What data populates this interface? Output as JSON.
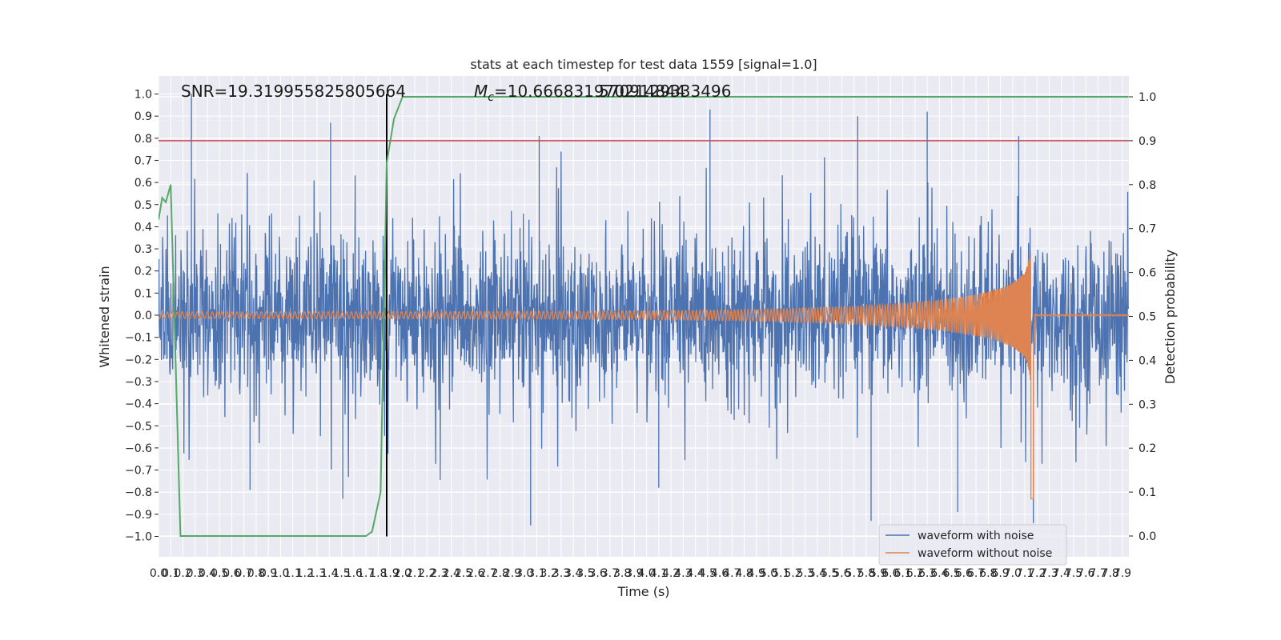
{
  "chart_data": {
    "type": "line",
    "title": "stats at each timestep for test data 1559 [signal=1.0]",
    "xlabel": "Time (s)",
    "ylabel": "Whitened strain",
    "y2label": "Detection probability",
    "xlim": [
      0.0,
      7.95
    ],
    "ylim": [
      -1.1,
      1.1
    ],
    "y2lim": [
      -0.05,
      1.04
    ],
    "x_ticks": [
      "0.0",
      "0.1",
      "0.2",
      "0.3",
      "0.4",
      "0.5",
      "0.6",
      "0.7",
      "0.8",
      "0.9",
      "1.0",
      "1.1",
      "1.2",
      "1.3",
      "1.4",
      "1.5",
      "1.6",
      "1.7",
      "1.8",
      "1.9",
      "2.0",
      "2.1",
      "2.2",
      "2.3",
      "2.4",
      "2.5",
      "2.6",
      "2.7",
      "2.8",
      "2.9",
      "3.0",
      "3.1",
      "3.2",
      "3.3",
      "3.4",
      "3.5",
      "3.6",
      "3.7",
      "3.8",
      "3.9",
      "4.0",
      "4.1",
      "4.2",
      "4.3",
      "4.4",
      "4.5",
      "4.6",
      "4.7",
      "4.8",
      "4.9",
      "5.0",
      "5.1",
      "5.2",
      "5.3",
      "5.4",
      "5.5",
      "5.6",
      "5.7",
      "5.8",
      "5.9",
      "6.0",
      "6.1",
      "6.2",
      "6.3",
      "6.4",
      "6.5",
      "6.6",
      "6.7",
      "6.8",
      "6.9",
      "7.0",
      "7.1",
      "7.2",
      "7.3",
      "7.4",
      "7.5",
      "7.6",
      "7.7",
      "7.8",
      "7.9"
    ],
    "y_ticks": [
      "−1.0",
      "−0.9",
      "−0.8",
      "−0.7",
      "−0.6",
      "−0.5",
      "−0.4",
      "−0.3",
      "−0.2",
      "−0.1",
      "0.0",
      "0.1",
      "0.2",
      "0.3",
      "0.4",
      "0.5",
      "0.6",
      "0.7",
      "0.8",
      "0.9",
      "1.0"
    ],
    "y2_ticks": [
      "0.0",
      "0.1",
      "0.2",
      "0.3",
      "0.4",
      "0.5",
      "0.6",
      "0.7",
      "0.8",
      "0.9",
      "1.0"
    ],
    "annotations": {
      "snr": "SNR=19.319955825805664",
      "mc_prefix": "M",
      "mc_sub": "c",
      "mc_value": "=10.666831970214844",
      "overlap": "5709129333496"
    },
    "legend": {
      "position": "lower-right",
      "entries": [
        {
          "label": "waveform with noise",
          "color": "#4c72b0"
        },
        {
          "label": "waveform without noise",
          "color": "#dd8452"
        }
      ]
    },
    "series": [
      {
        "name": "waveform with noise",
        "color": "#4c72b0",
        "description": "whitened noisy strain, dense noise envelope",
        "noise_envelope": {
          "typical_max": 0.45,
          "spikes": [
            {
              "x": 0.27,
              "y": 1.0
            },
            {
              "x": 1.41,
              "y": 0.87
            },
            {
              "x": 4.52,
              "y": 0.93
            },
            {
              "x": 5.73,
              "y": 0.9
            },
            {
              "x": 6.3,
              "y": 0.92
            },
            {
              "x": 7.05,
              "y": 0.81
            },
            {
              "x": 3.12,
              "y": 0.81
            },
            {
              "x": 3.05,
              "y": -0.95
            },
            {
              "x": 1.51,
              "y": -0.83
            },
            {
              "x": 5.84,
              "y": -0.93
            },
            {
              "x": 6.55,
              "y": -0.89
            },
            {
              "x": 7.17,
              "y": -0.94
            },
            {
              "x": 4.1,
              "y": -0.78
            },
            {
              "x": 0.75,
              "y": -0.79
            }
          ]
        }
      },
      {
        "name": "waveform without noise",
        "color": "#dd8452",
        "description": "chirp signal, amplitude grows towards merger",
        "merger_time": 7.16,
        "amplitude_start": 0.015,
        "amplitude_peak": 0.55,
        "amplitude_min_at_merger": -0.83,
        "freq_start_hz": 24,
        "freq_end_hz": 200
      },
      {
        "name": "detection probability",
        "color": "#55a868",
        "axis": "right",
        "x": [
          0.0,
          0.03,
          0.06,
          0.1,
          0.18,
          0.2,
          1.0,
          1.7,
          1.75,
          1.82,
          1.87,
          1.93,
          2.0,
          7.95
        ],
        "y": [
          0.72,
          0.77,
          0.76,
          0.8,
          0.0,
          0.0,
          0.0,
          0.0,
          0.01,
          0.1,
          0.85,
          0.95,
          1.0,
          1.0
        ]
      }
    ],
    "reference_lines": [
      {
        "name": "threshold",
        "orientation": "horizontal",
        "axis": "right",
        "value": 0.9,
        "color": "#c44e52"
      },
      {
        "name": "detection-time",
        "orientation": "vertical",
        "value": 1.87,
        "y_from": -1.0,
        "y_to": 1.0,
        "color": "#000000"
      }
    ]
  }
}
